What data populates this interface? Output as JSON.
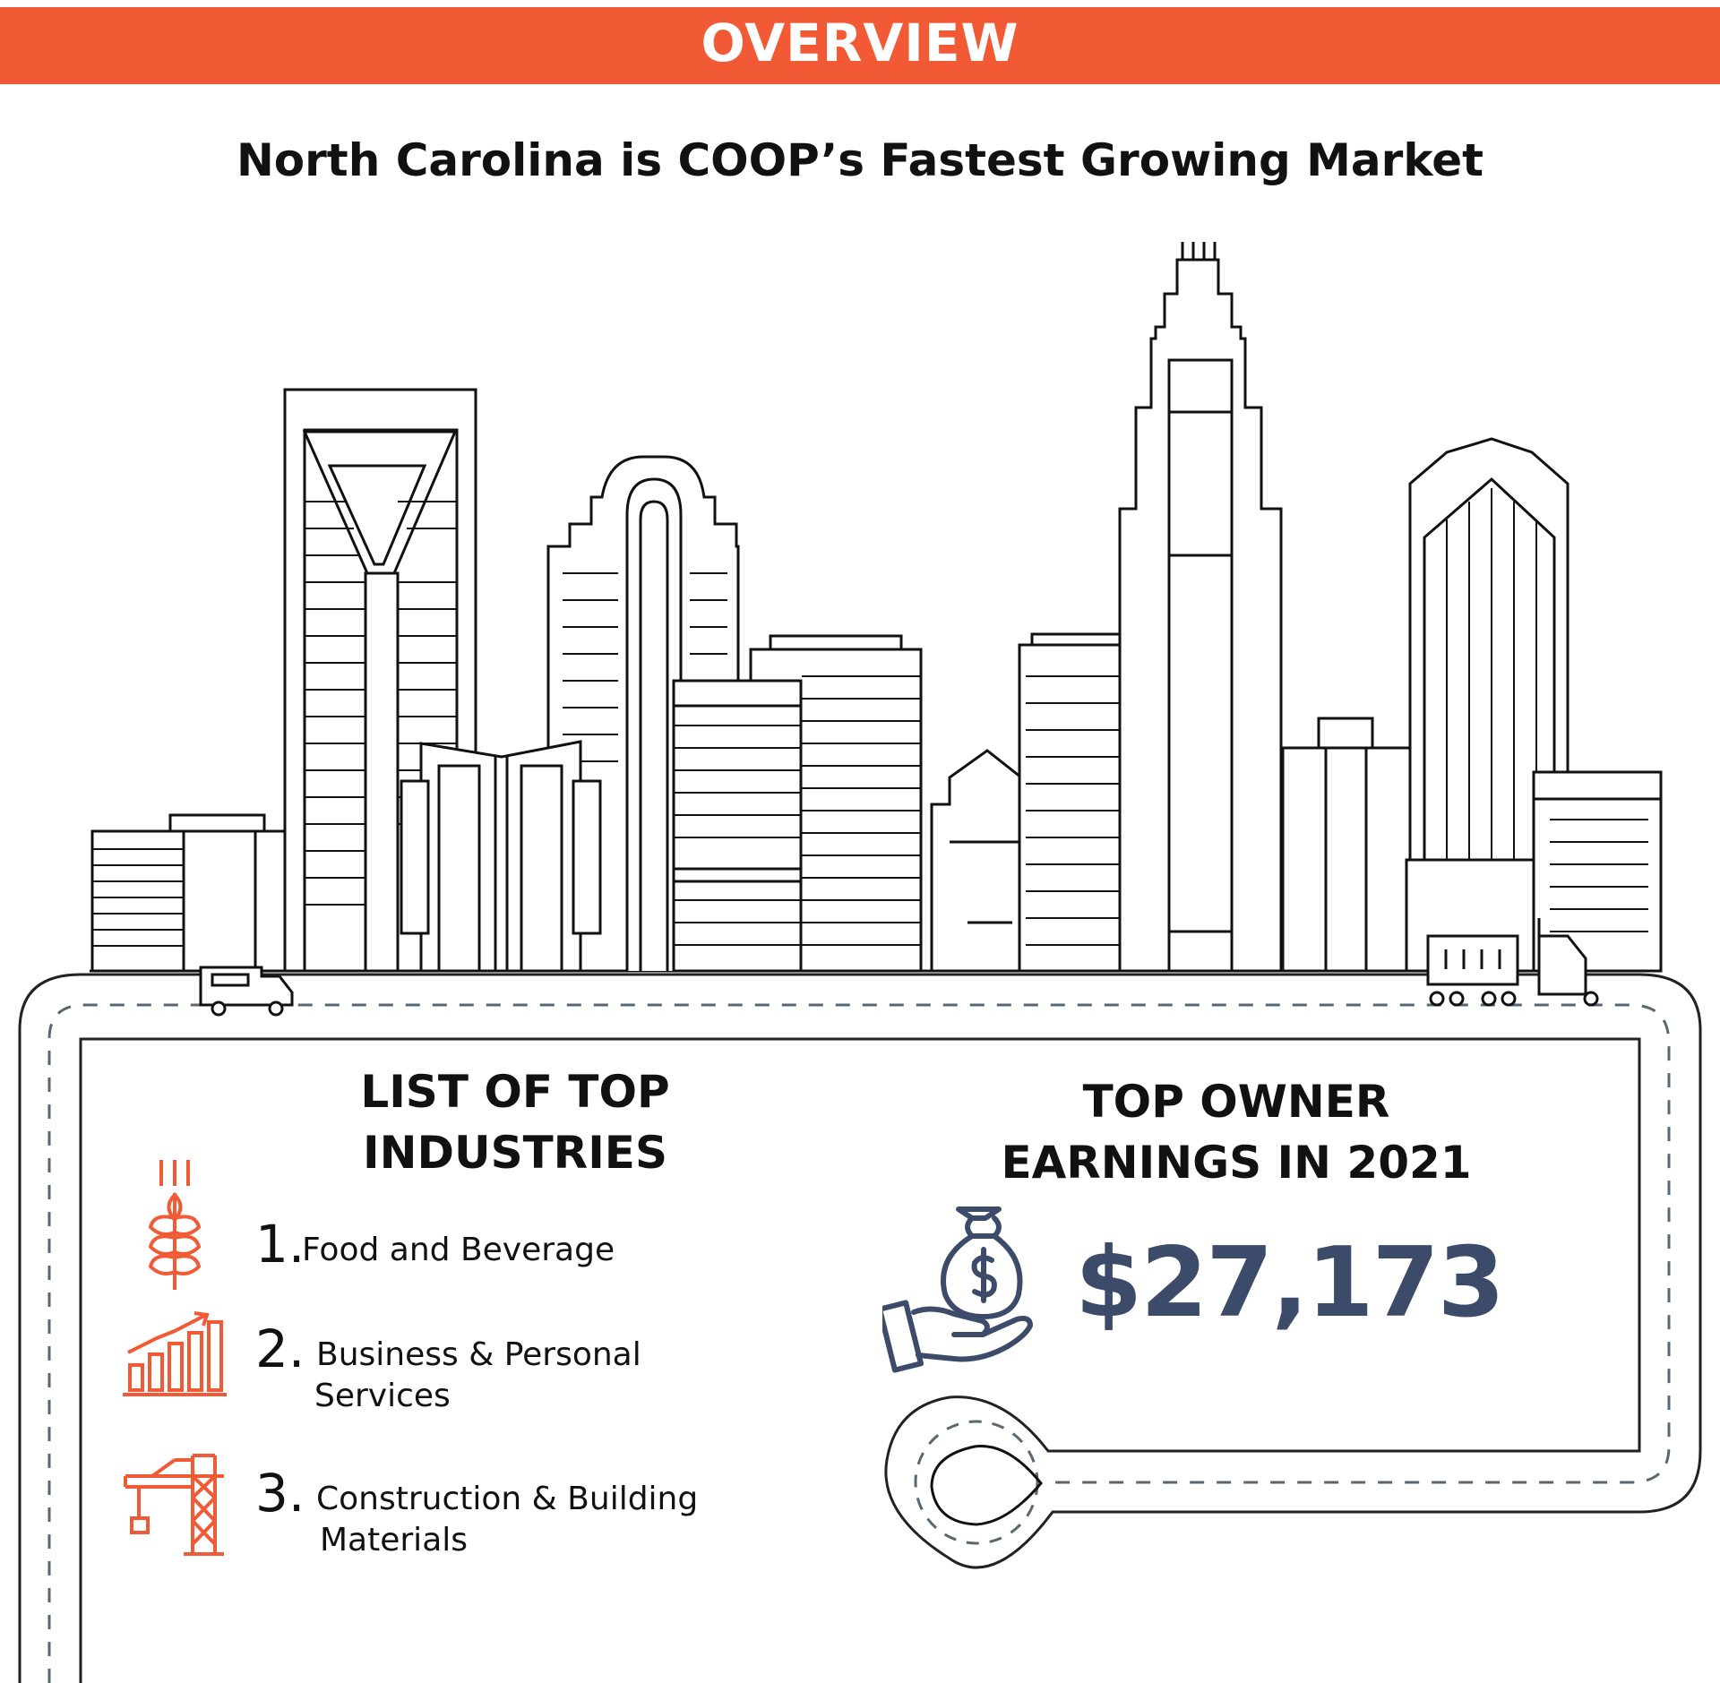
{
  "banner": {
    "title": "OVERVIEW",
    "color": "#f15a35"
  },
  "headline": "North Carolina is COOP’s Fastest Growing Market",
  "industries": {
    "title_line1": "LIST OF TOP",
    "title_line2": "INDUSTRIES",
    "items": [
      {
        "number": "1.",
        "line1": "Food and Beverage",
        "line2": "",
        "icon": "wheat-icon"
      },
      {
        "number": "2.",
        "line1": "Business & Personal",
        "line2": "Services",
        "icon": "growth-chart-icon"
      },
      {
        "number": "3.",
        "line1": "Construction & Building",
        "line2": "Materials",
        "icon": "crane-icon"
      }
    ]
  },
  "earnings": {
    "title_line1": "TOP OWNER",
    "title_line2": "EARNINGS IN 2021",
    "amount": "$27,173",
    "icon": "money-bag-hand-icon",
    "color": "#3d4b6b"
  },
  "illustration": {
    "icons": [
      "city-skyline",
      "van-icon",
      "truck-icon",
      "road",
      "map-pin-icon"
    ]
  }
}
